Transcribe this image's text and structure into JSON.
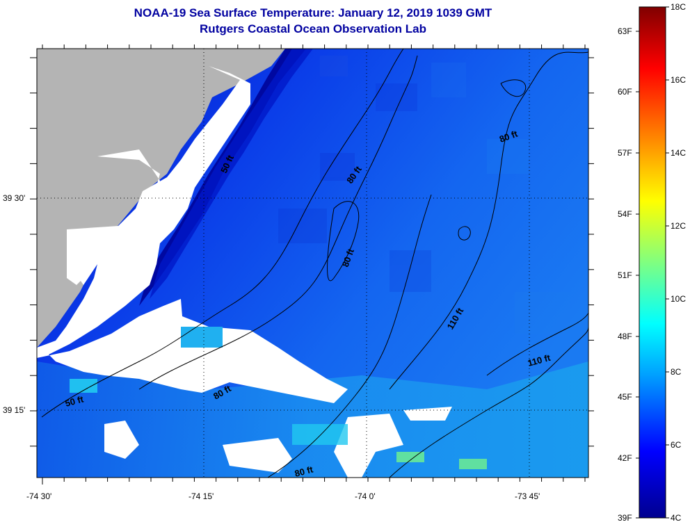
{
  "header": {
    "title": "NOAA-19 Sea Surface Temperature:  January 12, 2019 1039 GMT",
    "subtitle": "Rutgers Coastal Ocean Observation Lab"
  },
  "map": {
    "lat_labels": [
      "39 30'",
      "39 15'"
    ],
    "lon_labels": [
      "-74 30'",
      "-74 15'",
      "-74 0'",
      "-73 45'"
    ],
    "contour_labels": [
      "50 ft",
      "50 ft",
      "80 ft",
      "80 ft",
      "80 ft",
      "80 ft",
      "110 ft",
      "110 ft"
    ],
    "colors": {
      "land": "#b4b4b4",
      "cloud_mask": "#ffffff",
      "frame": "#000000"
    }
  },
  "colorbar": {
    "celsius_labels": [
      "18C",
      "16C",
      "14C",
      "12C",
      "10C",
      "8C",
      "6C",
      "4C"
    ],
    "fahrenheit_labels": [
      "63F",
      "60F",
      "57F",
      "54F",
      "51F",
      "48F",
      "45F",
      "42F",
      "39F"
    ],
    "colors": [
      "#00008f",
      "#0000ff",
      "#00a0ff",
      "#00ffff",
      "#80ff80",
      "#ffff00",
      "#ff8000",
      "#ff0000",
      "#800000"
    ]
  }
}
